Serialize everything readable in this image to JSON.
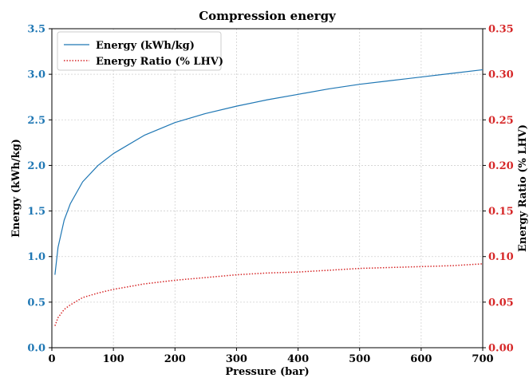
{
  "chart_data": {
    "type": "line",
    "title": "Compression energy",
    "xlabel": "Pressure (bar)",
    "ylabel_left": "Energy (kWh/kg)",
    "ylabel_right": "Energy Ratio (% LHV)",
    "xlim": [
      0,
      700
    ],
    "ylim_left": [
      0,
      3.5
    ],
    "ylim_right": [
      0,
      0.35
    ],
    "x_ticks": [
      "0",
      "100",
      "200",
      "300",
      "400",
      "500",
      "600",
      "700"
    ],
    "y_ticks_left": [
      "0.0",
      "0.5",
      "1.0",
      "1.5",
      "2.0",
      "2.5",
      "3.0",
      "3.5"
    ],
    "y_ticks_right": [
      "0.00",
      "0.05",
      "0.10",
      "0.15",
      "0.20",
      "0.25",
      "0.30",
      "0.35"
    ],
    "grid": true,
    "legend_position": "top-left",
    "colors": {
      "left_axis": "#1f77b4",
      "right_axis": "#d62728",
      "energy_line": "#1f77b4",
      "ratio_line": "#d62728"
    },
    "series": [
      {
        "name": "Energy (kWh/kg)",
        "axis": "left",
        "style": "solid",
        "x": [
          5,
          10,
          20,
          30,
          50,
          75,
          100,
          150,
          200,
          250,
          300,
          350,
          400,
          450,
          500,
          550,
          600,
          650,
          700
        ],
        "y": [
          0.8,
          1.1,
          1.4,
          1.58,
          1.82,
          2.0,
          2.13,
          2.33,
          2.47,
          2.57,
          2.65,
          2.72,
          2.78,
          2.84,
          2.89,
          2.93,
          2.97,
          3.01,
          3.05
        ]
      },
      {
        "name": "Energy Ratio (% LHV)",
        "axis": "right",
        "style": "dotted",
        "x": [
          5,
          10,
          20,
          30,
          50,
          75,
          100,
          150,
          200,
          250,
          300,
          350,
          400,
          450,
          500,
          550,
          600,
          650,
          700
        ],
        "y": [
          0.024,
          0.033,
          0.042,
          0.047,
          0.055,
          0.06,
          0.064,
          0.07,
          0.074,
          0.077,
          0.08,
          0.082,
          0.083,
          0.085,
          0.087,
          0.088,
          0.089,
          0.09,
          0.092
        ]
      }
    ]
  }
}
